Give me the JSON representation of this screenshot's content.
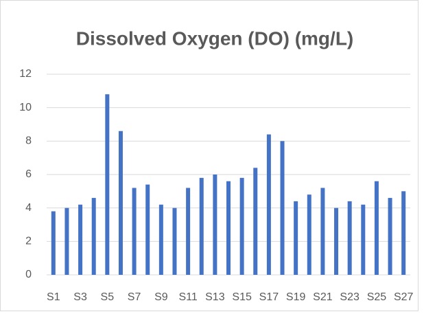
{
  "chart_data": {
    "type": "bar",
    "title": "Dissolved Oxygen (DO) (mg/L)",
    "categories": [
      "S1",
      null,
      "S3",
      null,
      "S5",
      null,
      "S7",
      null,
      "S9",
      null,
      "S11",
      null,
      "S13",
      null,
      "S15",
      null,
      "S17",
      null,
      "S19",
      null,
      "S21",
      null,
      "S23",
      null,
      "S25",
      null,
      "S27"
    ],
    "values": [
      3.8,
      4.0,
      4.2,
      4.6,
      10.8,
      8.6,
      5.2,
      5.4,
      4.2,
      4.0,
      5.2,
      5.8,
      6.0,
      5.6,
      5.8,
      6.4,
      8.4,
      8.0,
      4.4,
      4.8,
      5.2,
      4.0,
      4.4,
      4.2,
      5.6,
      4.6,
      5.0
    ],
    "color": "#4472c4",
    "ylim": [
      0,
      12
    ],
    "yticks": [
      0,
      2,
      4,
      6,
      8,
      10,
      12
    ],
    "grid": true
  }
}
